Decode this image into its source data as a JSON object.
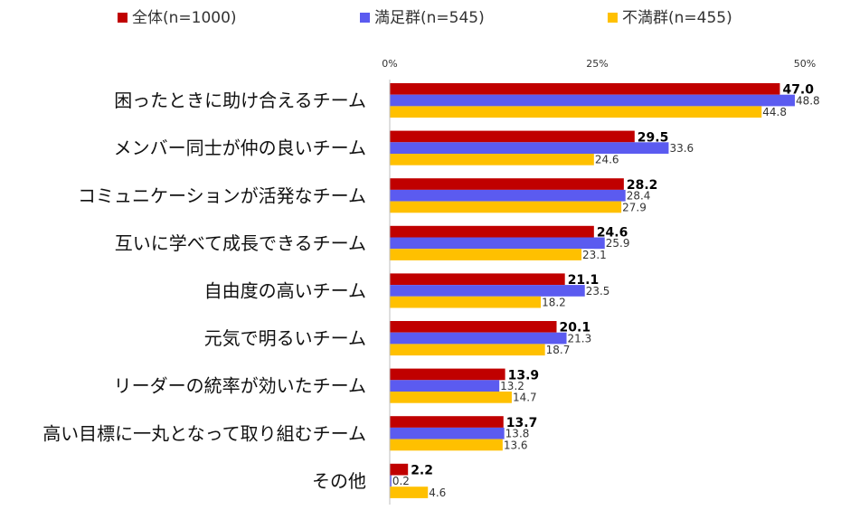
{
  "chart_data": {
    "type": "bar",
    "orientation": "horizontal",
    "title": "",
    "xlabel": "",
    "ylabel": "",
    "xlim": [
      0,
      50
    ],
    "ticks": [
      "0%",
      "25%",
      "50%"
    ],
    "tick_values": [
      0,
      25,
      50
    ],
    "grid": false,
    "legend_position": "top",
    "categories": [
      "困ったときに助け合えるチーム",
      "メンバー同士が仲の良いチーム",
      "コミュニケーションが活発なチーム",
      "互いに学べて成長できるチーム",
      "自由度の高いチーム",
      "元気で明るいチーム",
      "リーダーの統率が効いたチーム",
      "高い目標に一丸となって取り組むチーム",
      "その他"
    ],
    "series": [
      {
        "name": "全体(n=1000)",
        "color": "#c00000",
        "values": [
          47.0,
          29.5,
          28.2,
          24.6,
          21.1,
          20.1,
          13.9,
          13.7,
          2.2
        ],
        "labels": [
          "47.0",
          "29.5",
          "28.2",
          "24.6",
          "21.1",
          "20.1",
          "13.9",
          "13.7",
          "2.2"
        ]
      },
      {
        "name": "満足群(n=545)",
        "color": "#5b5bf0",
        "values": [
          48.8,
          33.6,
          28.4,
          25.9,
          23.5,
          21.3,
          13.2,
          13.8,
          0.2
        ],
        "labels": [
          "48.8",
          "33.6",
          "28.4",
          "25.9",
          "23.5",
          "21.3",
          "13.2",
          "13.8",
          "0.2"
        ]
      },
      {
        "name": "不満群(n=455)",
        "color": "#ffc000",
        "values": [
          44.8,
          24.6,
          27.9,
          23.1,
          18.2,
          18.7,
          14.7,
          13.6,
          4.6
        ],
        "labels": [
          "44.8",
          "24.6",
          "27.9",
          "23.1",
          "18.2",
          "18.7",
          "14.7",
          "13.6",
          "4.6"
        ]
      }
    ]
  }
}
